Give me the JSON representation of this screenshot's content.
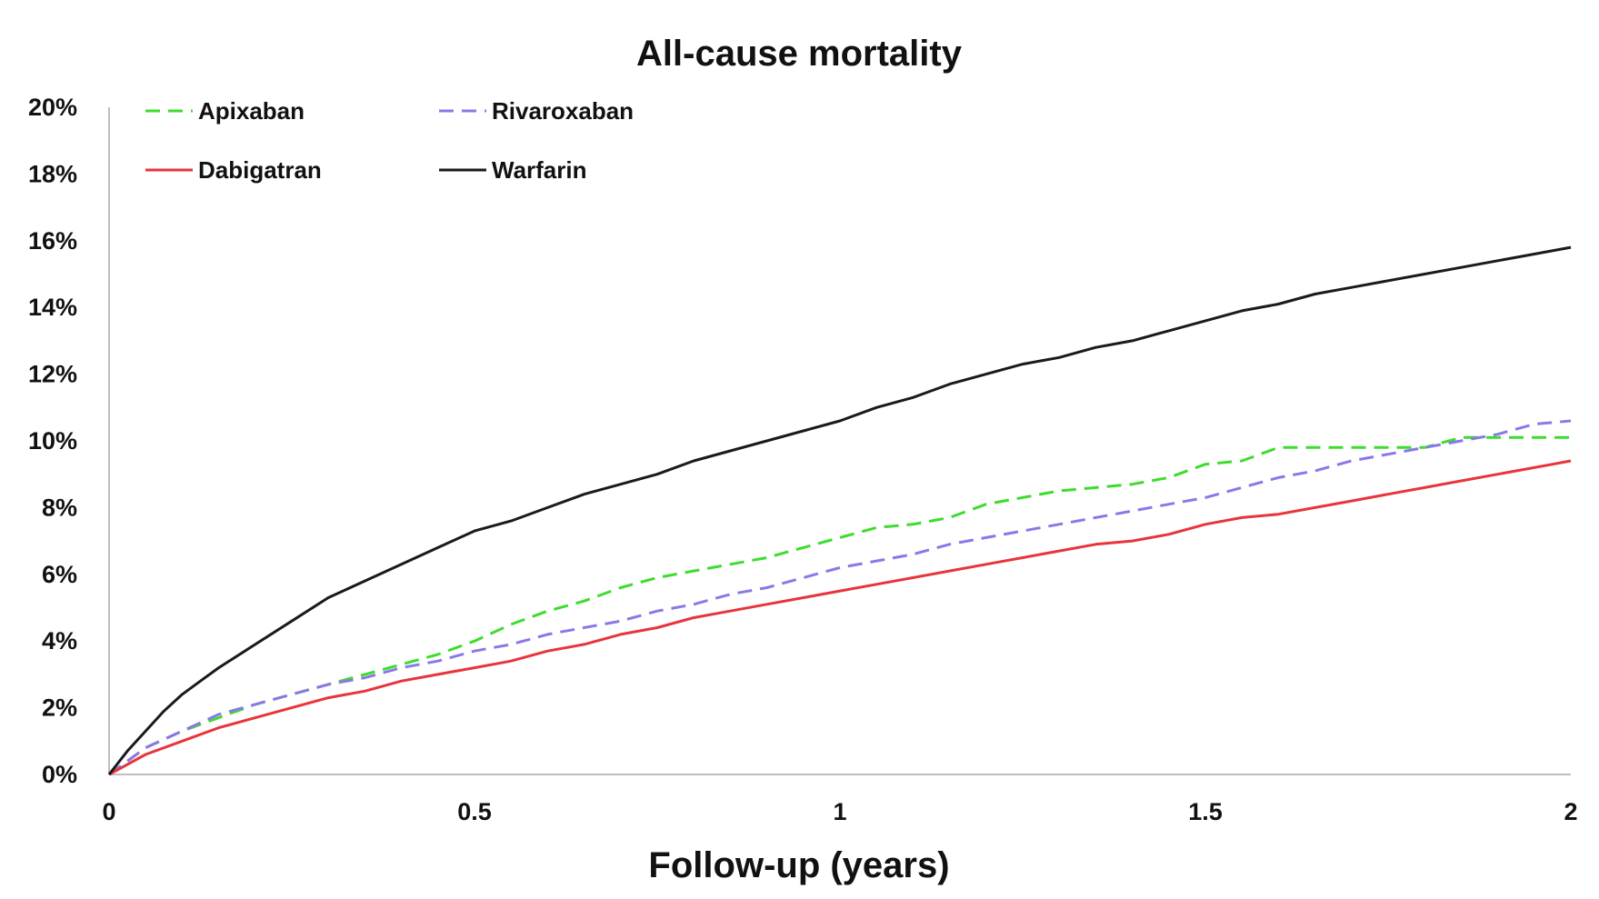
{
  "chart_data": {
    "type": "line",
    "title": "All-cause mortality",
    "xlabel": "Follow-up (years)",
    "ylabel": "",
    "xlim": [
      0,
      2
    ],
    "ylim": [
      0,
      20
    ],
    "x_ticks": [
      0,
      0.5,
      1,
      1.5,
      2
    ],
    "x_tick_labels": [
      "0",
      "0.5",
      "1",
      "1.5",
      "2"
    ],
    "y_ticks": [
      0,
      2,
      4,
      6,
      8,
      10,
      12,
      14,
      16,
      18,
      20
    ],
    "y_tick_labels": [
      "0%",
      "2%",
      "4%",
      "6%",
      "8%",
      "10%",
      "12%",
      "14%",
      "16%",
      "18%",
      "20%"
    ],
    "grid": false,
    "legend_position": "top-left",
    "series": [
      {
        "name": "Apixaban",
        "color": "#3ddc2e",
        "dash": "dashed",
        "x": [
          0,
          0.05,
          0.1,
          0.15,
          0.2,
          0.25,
          0.3,
          0.35,
          0.4,
          0.45,
          0.5,
          0.55,
          0.6,
          0.65,
          0.7,
          0.75,
          0.8,
          0.85,
          0.9,
          0.95,
          1.0,
          1.05,
          1.1,
          1.15,
          1.2,
          1.25,
          1.3,
          1.35,
          1.4,
          1.45,
          1.5,
          1.55,
          1.6,
          1.65,
          1.7,
          1.75,
          1.8,
          1.85,
          1.9,
          1.95,
          2.0
        ],
        "values": [
          0,
          0.8,
          1.3,
          1.7,
          2.1,
          2.4,
          2.7,
          3.0,
          3.3,
          3.6,
          4.0,
          4.5,
          4.9,
          5.2,
          5.6,
          5.9,
          6.1,
          6.3,
          6.5,
          6.8,
          7.1,
          7.4,
          7.5,
          7.7,
          8.1,
          8.3,
          8.5,
          8.6,
          8.7,
          8.9,
          9.3,
          9.4,
          9.8,
          9.8,
          9.8,
          9.8,
          9.8,
          10.1,
          10.1,
          10.1,
          10.1
        ]
      },
      {
        "name": "Rivaroxaban",
        "color": "#8a78e8",
        "dash": "dashed",
        "x": [
          0,
          0.05,
          0.1,
          0.15,
          0.2,
          0.25,
          0.3,
          0.35,
          0.4,
          0.45,
          0.5,
          0.55,
          0.6,
          0.65,
          0.7,
          0.75,
          0.8,
          0.85,
          0.9,
          0.95,
          1.0,
          1.05,
          1.1,
          1.15,
          1.2,
          1.25,
          1.3,
          1.35,
          1.4,
          1.45,
          1.5,
          1.55,
          1.6,
          1.65,
          1.7,
          1.75,
          1.8,
          1.85,
          1.9,
          1.95,
          2.0
        ],
        "values": [
          0,
          0.8,
          1.3,
          1.8,
          2.1,
          2.4,
          2.7,
          2.9,
          3.2,
          3.4,
          3.7,
          3.9,
          4.2,
          4.4,
          4.6,
          4.9,
          5.1,
          5.4,
          5.6,
          5.9,
          6.2,
          6.4,
          6.6,
          6.9,
          7.1,
          7.3,
          7.5,
          7.7,
          7.9,
          8.1,
          8.3,
          8.6,
          8.9,
          9.1,
          9.4,
          9.6,
          9.8,
          10.0,
          10.2,
          10.5,
          10.6
        ]
      },
      {
        "name": "Dabigatran",
        "color": "#e8343b",
        "dash": "solid",
        "x": [
          0,
          0.05,
          0.1,
          0.15,
          0.2,
          0.25,
          0.3,
          0.35,
          0.4,
          0.45,
          0.5,
          0.55,
          0.6,
          0.65,
          0.7,
          0.75,
          0.8,
          0.85,
          0.9,
          0.95,
          1.0,
          1.05,
          1.1,
          1.15,
          1.2,
          1.25,
          1.3,
          1.35,
          1.4,
          1.45,
          1.5,
          1.55,
          1.6,
          1.65,
          1.7,
          1.75,
          1.8,
          1.85,
          1.9,
          1.95,
          2.0
        ],
        "values": [
          0,
          0.6,
          1.0,
          1.4,
          1.7,
          2.0,
          2.3,
          2.5,
          2.8,
          3.0,
          3.2,
          3.4,
          3.7,
          3.9,
          4.2,
          4.4,
          4.7,
          4.9,
          5.1,
          5.3,
          5.5,
          5.7,
          5.9,
          6.1,
          6.3,
          6.5,
          6.7,
          6.9,
          7.0,
          7.2,
          7.5,
          7.7,
          7.8,
          8.0,
          8.2,
          8.4,
          8.6,
          8.8,
          9.0,
          9.2,
          9.4
        ]
      },
      {
        "name": "Warfarin",
        "color": "#1a1a1a",
        "dash": "solid",
        "x": [
          0,
          0.025,
          0.05,
          0.075,
          0.1,
          0.125,
          0.15,
          0.2,
          0.25,
          0.3,
          0.35,
          0.4,
          0.45,
          0.5,
          0.55,
          0.6,
          0.65,
          0.7,
          0.75,
          0.8,
          0.85,
          0.9,
          0.95,
          1.0,
          1.05,
          1.1,
          1.15,
          1.2,
          1.25,
          1.3,
          1.35,
          1.4,
          1.45,
          1.5,
          1.55,
          1.6,
          1.65,
          1.7,
          1.75,
          1.8,
          1.85,
          1.9,
          1.95,
          2.0
        ],
        "values": [
          0,
          0.7,
          1.3,
          1.9,
          2.4,
          2.8,
          3.2,
          3.9,
          4.6,
          5.3,
          5.8,
          6.3,
          6.8,
          7.3,
          7.6,
          8.0,
          8.4,
          8.7,
          9.0,
          9.4,
          9.7,
          10.0,
          10.3,
          10.6,
          11.0,
          11.3,
          11.7,
          12.0,
          12.3,
          12.5,
          12.8,
          13.0,
          13.3,
          13.6,
          13.9,
          14.1,
          14.4,
          14.6,
          14.8,
          15.0,
          15.2,
          15.4,
          15.6,
          15.8
        ]
      }
    ]
  }
}
